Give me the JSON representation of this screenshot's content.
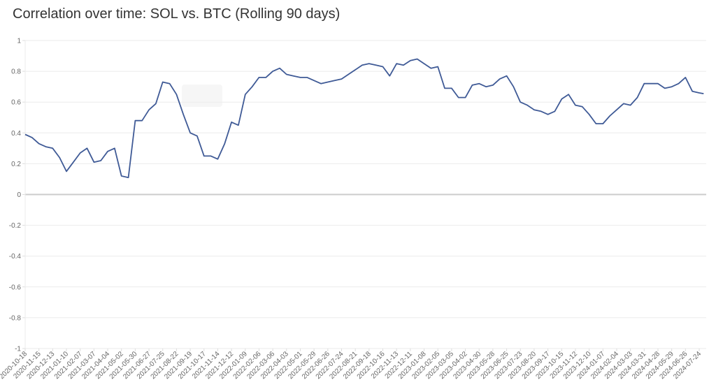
{
  "chart_data": {
    "type": "line",
    "title": "Correlation over time: SOL vs. BTC (Rolling 90 days)",
    "xlabel": "",
    "ylabel": "",
    "ylim": [
      -1,
      1
    ],
    "yticks": [
      "1",
      "0.8",
      "0.6",
      "0.4",
      "0.2",
      "0",
      "-0.2",
      "-0.4",
      "-0.6",
      "-0.8",
      "-1"
    ],
    "xticks": [
      "2020-10-18",
      "2020-11-15",
      "2020-12-13",
      "2021-01-10",
      "2021-02-07",
      "2021-03-07",
      "2021-04-04",
      "2021-05-02",
      "2021-05-30",
      "2021-06-27",
      "2021-07-25",
      "2021-08-22",
      "2021-09-19",
      "2021-10-17",
      "2021-11-14",
      "2021-12-12",
      "2022-01-09",
      "2022-02-06",
      "2022-03-06",
      "2022-04-03",
      "2022-05-01",
      "2022-05-29",
      "2022-06-26",
      "2022-07-24",
      "2022-08-21",
      "2022-09-18",
      "2022-10-16",
      "2022-11-13",
      "2022-12-11",
      "2023-01-08",
      "2023-02-05",
      "2023-03-05",
      "2023-04-02",
      "2023-04-30",
      "2023-05-28",
      "2023-06-25",
      "2023-07-23",
      "2023-08-20",
      "2023-09-17",
      "2023-10-15",
      "2023-11-12",
      "2023-12-10",
      "2024-01-07",
      "2024-02-04",
      "2024-03-03",
      "2024-03-31",
      "2024-04-28",
      "2024-05-29",
      "2024-06-26",
      "2024-07-24"
    ],
    "grid": true,
    "line_color": "#3f5a96",
    "x": [
      "2020-10-18",
      "2020-11-01",
      "2020-11-15",
      "2020-11-29",
      "2020-12-13",
      "2020-12-27",
      "2021-01-10",
      "2021-01-24",
      "2021-02-07",
      "2021-02-21",
      "2021-03-07",
      "2021-03-21",
      "2021-04-04",
      "2021-04-18",
      "2021-05-02",
      "2021-05-16",
      "2021-05-30",
      "2021-06-13",
      "2021-06-27",
      "2021-07-11",
      "2021-07-25",
      "2021-08-08",
      "2021-08-22",
      "2021-09-05",
      "2021-09-19",
      "2021-10-03",
      "2021-10-17",
      "2021-10-31",
      "2021-11-14",
      "2021-11-28",
      "2021-12-12",
      "2021-12-26",
      "2022-01-09",
      "2022-01-23",
      "2022-02-06",
      "2022-02-20",
      "2022-03-06",
      "2022-03-20",
      "2022-04-03",
      "2022-04-17",
      "2022-05-01",
      "2022-05-15",
      "2022-05-29",
      "2022-06-12",
      "2022-06-26",
      "2022-07-10",
      "2022-07-24",
      "2022-08-07",
      "2022-08-21",
      "2022-09-04",
      "2022-09-18",
      "2022-10-02",
      "2022-10-16",
      "2022-10-30",
      "2022-11-13",
      "2022-11-27",
      "2022-12-11",
      "2022-12-25",
      "2023-01-08",
      "2023-01-22",
      "2023-02-05",
      "2023-02-19",
      "2023-03-05",
      "2023-03-19",
      "2023-04-02",
      "2023-04-16",
      "2023-04-30",
      "2023-05-14",
      "2023-05-28",
      "2023-06-11",
      "2023-06-25",
      "2023-07-09",
      "2023-07-23",
      "2023-08-06",
      "2023-08-20",
      "2023-09-03",
      "2023-09-17",
      "2023-10-01",
      "2023-10-15",
      "2023-10-29",
      "2023-11-12",
      "2023-11-26",
      "2023-12-10",
      "2023-12-24",
      "2024-01-07",
      "2024-01-21",
      "2024-02-04",
      "2024-02-18",
      "2024-03-03",
      "2024-03-17",
      "2024-03-31",
      "2024-04-14",
      "2024-04-28",
      "2024-05-12",
      "2024-05-26",
      "2024-06-09",
      "2024-06-23",
      "2024-07-07",
      "2024-07-21",
      "2024-07-30"
    ],
    "values": [
      0.39,
      0.37,
      0.33,
      0.31,
      0.3,
      0.24,
      0.15,
      0.21,
      0.27,
      0.3,
      0.21,
      0.22,
      0.28,
      0.3,
      0.12,
      0.11,
      0.48,
      0.48,
      0.55,
      0.59,
      0.73,
      0.72,
      0.65,
      0.52,
      0.4,
      0.38,
      0.25,
      0.25,
      0.23,
      0.33,
      0.47,
      0.45,
      0.65,
      0.7,
      0.76,
      0.76,
      0.8,
      0.82,
      0.78,
      0.77,
      0.76,
      0.76,
      0.74,
      0.72,
      0.73,
      0.74,
      0.75,
      0.78,
      0.81,
      0.84,
      0.85,
      0.84,
      0.83,
      0.77,
      0.85,
      0.84,
      0.87,
      0.88,
      0.85,
      0.82,
      0.83,
      0.69,
      0.69,
      0.63,
      0.63,
      0.71,
      0.72,
      0.7,
      0.71,
      0.75,
      0.77,
      0.7,
      0.6,
      0.58,
      0.55,
      0.54,
      0.52,
      0.54,
      0.62,
      0.65,
      0.58,
      0.57,
      0.52,
      0.46,
      0.46,
      0.51,
      0.55,
      0.59,
      0.58,
      0.63,
      0.72,
      0.72,
      0.72,
      0.69,
      0.7,
      0.72,
      0.76,
      0.67,
      0.66,
      0.655
    ]
  }
}
